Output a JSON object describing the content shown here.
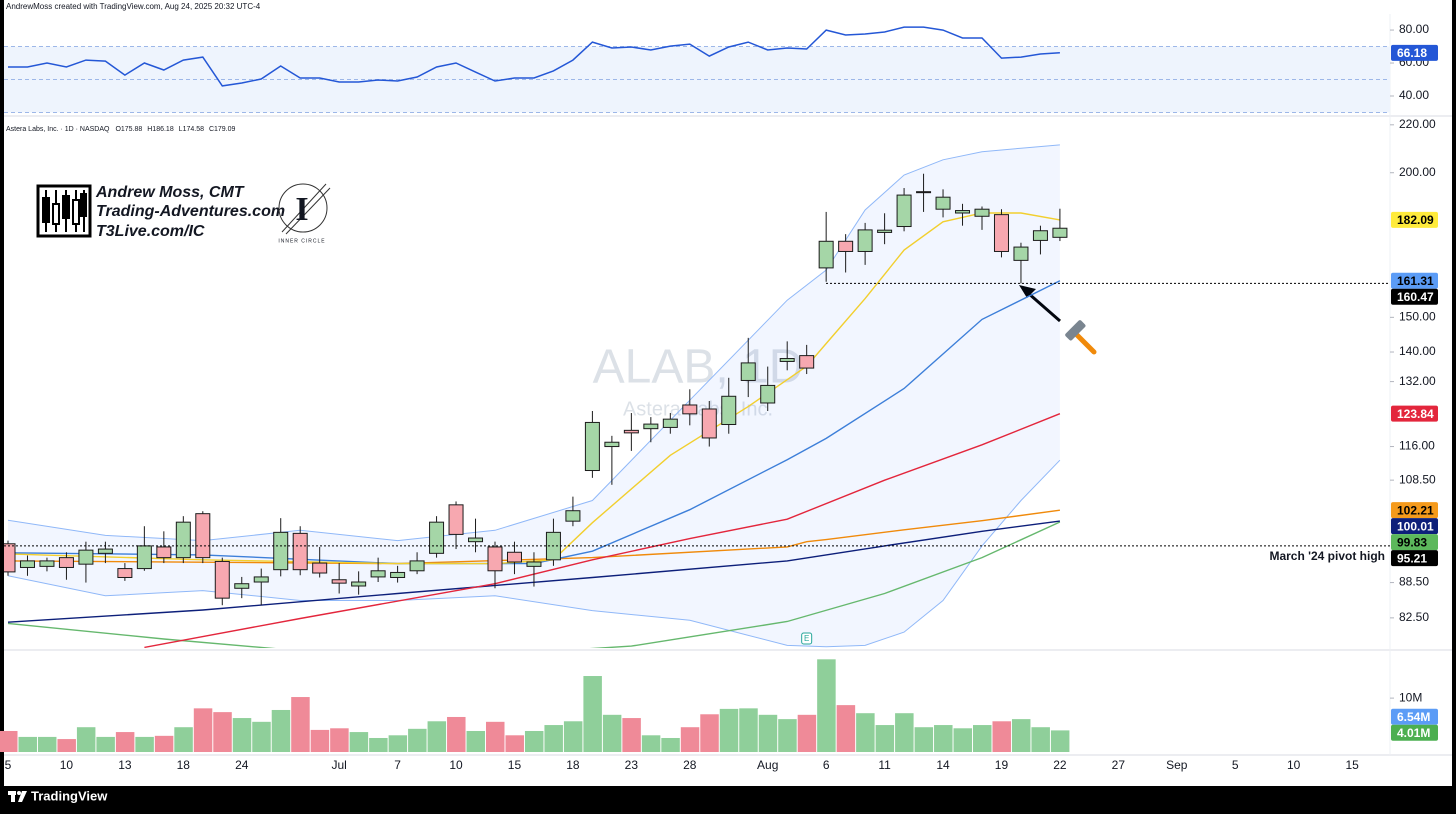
{
  "header": {
    "credit": "AndrewMoss created with TradingView.com, Aug 24, 2025 20:32 UTC-4",
    "symbol": "Astera Labs, Inc. · 1D · NASDAQ",
    "ohlc": [
      "O175.88",
      "H186.18",
      "L174.58",
      "C179.09"
    ],
    "watermark": "ALAB, 1D",
    "watermark_sub": "Astera Labs, Inc."
  },
  "logo": {
    "lines": [
      "Andrew Moss, CMT",
      "Trading-Adventures.com",
      "T3Live.com/IC"
    ],
    "badge_letter": "I",
    "badge": "INNER CIRCLE"
  },
  "footer": {
    "brand": "TradingView"
  },
  "chart_data": [
    {
      "type": "line",
      "color": "#2457d6",
      "ylim": [
        30.3,
        86.1
      ],
      "yticks": [
        {
          "value": 80,
          "label": "80.00"
        },
        {
          "value": 60,
          "label": "60.00"
        },
        {
          "value": 40,
          "label": "40.00"
        }
      ],
      "levels": [
        70,
        50,
        30
      ],
      "values": [
        57.6,
        57.6,
        60.0,
        57.6,
        61.8,
        61.2,
        52.7,
        60.0,
        55.8,
        61.8,
        63.6,
        46.1,
        47.9,
        50.3,
        58.2,
        50.9,
        50.9,
        48.5,
        48.5,
        49.7,
        49.1,
        51.5,
        57.6,
        60.0,
        54.5,
        49.1,
        50.9,
        50.9,
        55.2,
        61.8,
        72.7,
        69.1,
        69.7,
        67.9,
        70.3,
        71.5,
        64.2,
        69.7,
        72.7,
        67.9,
        69.1,
        68.5,
        80,
        77,
        77.6,
        78.8,
        81.8,
        81.8,
        80,
        75.2,
        75.2,
        63.0,
        63.6,
        65.5,
        66.18,
        null,
        null,
        null,
        null,
        null,
        null,
        null,
        null,
        null,
        null,
        null,
        null,
        null,
        null,
        null
      ]
    },
    {
      "type": "candlestick",
      "log_scale": true,
      "ylim": [
        77.7,
        223
      ],
      "up_color": "#a5d6a7",
      "down_color": "#f7a8b0",
      "yticks": [
        {
          "value": 220,
          "label": "220.00"
        },
        {
          "value": 200,
          "label": "200.00"
        },
        {
          "value": 150,
          "label": "150.00"
        },
        {
          "value": 140,
          "label": "140.00"
        },
        {
          "value": 132,
          "label": "132.00"
        },
        {
          "value": 116,
          "label": "116.00"
        },
        {
          "value": 108.5,
          "label": "108.50"
        },
        {
          "value": 88.5,
          "label": "88.50"
        },
        {
          "value": 82.5,
          "label": "82.50"
        }
      ],
      "open": [
        95.6,
        91.2,
        91.4,
        93,
        91.8,
        93.8,
        91,
        91,
        95,
        93,
        101.5,
        92.3,
        87.5,
        88.6,
        90.8,
        97.6,
        92,
        89,
        87.9,
        89.5,
        89.4,
        90.6,
        93.8,
        103.3,
        96,
        95,
        94,
        91.4,
        92.6,
        100,
        110.6,
        116,
        119.8,
        120.2,
        120.5,
        126,
        125,
        121.2,
        132.3,
        126.5,
        137.4,
        139,
        165.5,
        174.5,
        171,
        177.6,
        179.7,
        192.3,
        186,
        184.6,
        183.4,
        184,
        168,
        174.8,
        175.88,
        null,
        null,
        null,
        null,
        null,
        null,
        null,
        null,
        null,
        null,
        null,
        null,
        null,
        null,
        null
      ],
      "high": [
        96.2,
        93.4,
        93,
        94,
        96,
        96,
        92,
        99,
        98,
        101,
        102,
        93,
        89.5,
        91,
        100.6,
        99,
        95,
        92,
        90.5,
        93,
        91.5,
        94,
        101,
        104,
        100.5,
        96,
        96,
        94,
        100.5,
        105,
        124.5,
        118.5,
        124,
        123,
        124,
        130,
        127,
        133,
        144,
        136,
        143,
        142,
        185,
        177,
        181,
        184.5,
        194,
        199.6,
        193.5,
        188,
        187,
        186,
        174,
        180,
        186.18,
        null,
        null,
        null,
        null,
        null,
        null,
        null,
        null,
        null,
        null,
        null,
        null,
        null,
        null,
        null
      ],
      "low": [
        89.7,
        89.7,
        90.5,
        89,
        88.5,
        92,
        88.8,
        90.6,
        92,
        92,
        92,
        84.6,
        85.8,
        84.6,
        89.6,
        89.8,
        89.4,
        86.6,
        86.4,
        88.6,
        88.5,
        90,
        93,
        94.6,
        94,
        87.5,
        90,
        87.8,
        91.5,
        99,
        109,
        107.5,
        115,
        117,
        119,
        121,
        116,
        119,
        128,
        124.5,
        135,
        134,
        161,
        164,
        166.5,
        173.5,
        178,
        185,
        183,
        180,
        178.5,
        169,
        160.5,
        170,
        174.58,
        null,
        null,
        null,
        null,
        null,
        null,
        null,
        null,
        null,
        null,
        null,
        null,
        null,
        null,
        null
      ],
      "close": [
        90.4,
        92.4,
        92.4,
        91.2,
        94.4,
        94.6,
        89.4,
        95.2,
        93,
        99.8,
        93,
        85.8,
        88.3,
        89.5,
        97.8,
        90.8,
        90.2,
        88.4,
        88.6,
        90.6,
        90.3,
        92.4,
        99.8,
        97.4,
        96.7,
        90.6,
        92.2,
        92.2,
        97.8,
        102.1,
        121.7,
        117,
        119.2,
        121.3,
        122.5,
        123.8,
        118,
        128.2,
        137,
        131,
        138.2,
        135.6,
        174.5,
        171,
        178.5,
        178.4,
        191.3,
        192.6,
        190.5,
        185.5,
        186,
        171,
        172.5,
        178.2,
        179.09,
        null,
        null,
        null,
        null,
        null,
        null,
        null,
        null,
        null,
        null,
        null,
        null,
        null,
        null,
        null
      ],
      "band": {
        "color": "#90b8f8",
        "x": [
          0,
          5,
          10,
          15,
          20,
          25,
          30,
          35,
          40,
          42,
          44,
          46,
          48,
          50,
          52,
          54
        ],
        "upper": [
          100.2,
          97.2,
          96.2,
          98.2,
          96.2,
          98.2,
          104.2,
          127.2,
          155.2,
          164.8,
          185.7,
          199.1,
          205.2,
          208.5,
          210,
          211.4
        ],
        "lower": [
          89.7,
          86.2,
          87.1,
          85.4,
          85.4,
          86.2,
          83.7,
          82.1,
          78.1,
          77.9,
          78.1,
          80.2,
          85.4,
          95.2,
          104.2,
          112.9
        ]
      },
      "overlays": [
        {
          "color": "#66b86e",
          "tag_color": "#5cb85c",
          "text_color": "#000000",
          "x": [
            0,
            8,
            16,
            24,
            32,
            40,
            45,
            50,
            54
          ],
          "values": [
            81.6,
            79.1,
            77.0,
            76.5,
            78.0,
            81.9,
            86.6,
            93.0,
            99.83
          ]
        },
        {
          "color": "#0d1f7a",
          "tag_color": "#0d1f7a",
          "text_color": "#ffffff",
          "x": [
            0,
            10,
            20,
            30,
            40,
            45,
            50,
            54
          ],
          "values": [
            81.8,
            83.8,
            86.6,
            89.4,
            92.4,
            95.2,
            98,
            100.01
          ]
        },
        {
          "color": "#f08a0b",
          "tag_color": "#f59a1b",
          "text_color": "#000000",
          "x": [
            0,
            20,
            30,
            40,
            41,
            42,
            46,
            50,
            54
          ],
          "values": [
            92.4,
            91.9,
            93.0,
            95,
            96,
            96.4,
            98.3,
            100.1,
            102.21
          ]
        },
        {
          "color": "#e3263c",
          "tag_color": "#e3263c",
          "text_color": "#ffffff",
          "x": [
            7,
            15,
            25,
            30,
            35,
            40,
            45,
            50,
            54
          ],
          "values": [
            77.8,
            82.4,
            88.3,
            92.6,
            96.6,
            100.4,
            108.5,
            116.4,
            123.84
          ]
        },
        {
          "color": "#3d7fd9",
          "tag_color": "#5b9cf6",
          "text_color": "#000000",
          "x": [
            0,
            10,
            20,
            27,
            30,
            35,
            40,
            42,
            46,
            50,
            54
          ],
          "values": [
            93.9,
            93.5,
            91.9,
            91.9,
            94.2,
            102.3,
            113,
            117.9,
            130.2,
            149.4,
            161.31
          ]
        },
        {
          "color": "#f2cf2e",
          "tag_color": "#ffeb3b",
          "text_color": "#000000",
          "x": [
            0,
            10,
            20,
            25,
            28,
            30,
            34,
            38,
            41,
            42,
            44,
            46,
            48,
            50,
            52,
            54
          ],
          "values": [
            93.7,
            92.6,
            91.9,
            91.9,
            92.6,
            99.7,
            114,
            125.6,
            136.1,
            142.4,
            155.7,
            171.5,
            181.4,
            184.6,
            184.6,
            182.09
          ]
        }
      ],
      "lines": [
        {
          "value": 160.47,
          "color": "#000000"
        },
        {
          "value": 95.21,
          "color": "#000000",
          "label": "March '24 pivot high"
        }
      ],
      "earnings": {
        "x": 41,
        "label": "E"
      }
    },
    {
      "type": "bar",
      "ylim": [
        0,
        18
      ],
      "yticks": [
        {
          "value": 10,
          "label": "10M"
        }
      ],
      "categories": [
        "5",
        null,
        null,
        "10",
        null,
        null,
        "13",
        null,
        null,
        "18",
        null,
        null,
        "24",
        null,
        null,
        null,
        null,
        "Jul",
        null,
        null,
        "7",
        null,
        null,
        "10",
        null,
        null,
        "15",
        null,
        null,
        "18",
        null,
        null,
        "23",
        null,
        null,
        "28",
        null,
        null,
        null,
        "Aug",
        null,
        null,
        "6",
        null,
        null,
        "11",
        null,
        null,
        "14",
        null,
        null,
        "19",
        null,
        null,
        "22",
        null,
        null,
        "27",
        null,
        null,
        "Sep",
        null,
        null,
        "5",
        null,
        null,
        "10",
        null,
        null,
        "15"
      ],
      "values": [
        3.9,
        2.8,
        2.8,
        2.4,
        4.6,
        2.8,
        3.7,
        2.8,
        3.0,
        4.6,
        8.1,
        7.4,
        6.3,
        5.6,
        7.8,
        10.2,
        4.1,
        4.4,
        3.7,
        2.6,
        3.1,
        4.3,
        5.7,
        6.5,
        3.9,
        5.6,
        3.1,
        3.9,
        5.0,
        5.7,
        14.1,
        6.9,
        6.3,
        3.1,
        2.6,
        4.6,
        7.0,
        8.0,
        8.1,
        6.9,
        6.1,
        6.9,
        17.2,
        8.7,
        7.2,
        5.0,
        7.2,
        4.6,
        5.0,
        4.4,
        5.0,
        5.7,
        6.1,
        4.6,
        4.01,
        null,
        null,
        null,
        null,
        null,
        null,
        null,
        null,
        null,
        null,
        null,
        null,
        null,
        null,
        null
      ],
      "value_labels": {
        "54": "4.01M"
      },
      "up_color": "#8fcf9a",
      "down_color": "#ef8a98",
      "last_tag_color": "#4caf50",
      "volume_ma": {
        "value": 6.54,
        "label": "6.54M",
        "color": "#5b9cf6"
      }
    }
  ]
}
